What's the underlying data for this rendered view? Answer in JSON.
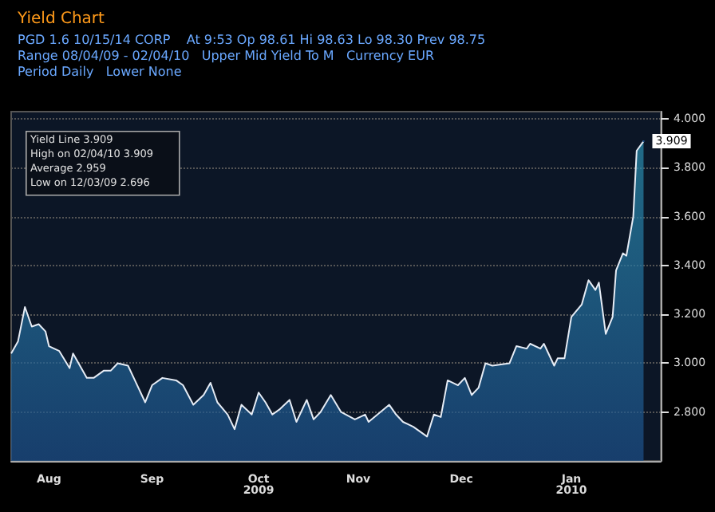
{
  "chart_data": {
    "type": "area",
    "title": "Yield Chart",
    "subtitle": "PGD 1.6 10/15/14 CORP    At 9:53 Op 98.61 Hi 98.63 Lo 98.30 Prev 98.75\nRange 08/04/09 - 02/04/10   Upper Mid Yield To M   Currency EUR\nPeriod Daily   Lower None",
    "x": [
      "2009-08-04",
      "2009-08-06",
      "2009-08-08",
      "2009-08-10",
      "2009-08-12",
      "2009-08-14",
      "2009-08-15",
      "2009-08-18",
      "2009-08-21",
      "2009-08-22",
      "2009-08-26",
      "2009-08-28",
      "2009-08-31",
      "2009-09-02",
      "2009-09-04",
      "2009-09-07",
      "2009-09-09",
      "2009-09-12",
      "2009-09-14",
      "2009-09-17",
      "2009-09-21",
      "2009-09-23",
      "2009-09-26",
      "2009-09-29",
      "2009-10-01",
      "2009-10-03",
      "2009-10-06",
      "2009-10-08",
      "2009-10-10",
      "2009-10-13",
      "2009-10-15",
      "2009-10-17",
      "2009-10-19",
      "2009-10-21",
      "2009-10-24",
      "2009-10-26",
      "2009-10-29",
      "2009-10-31",
      "2009-11-02",
      "2009-11-05",
      "2009-11-08",
      "2009-11-12",
      "2009-11-15",
      "2009-11-16",
      "2009-11-22",
      "2009-11-24",
      "2009-11-26",
      "2009-11-29",
      "2009-12-03",
      "2009-12-05",
      "2009-12-07",
      "2009-12-09",
      "2009-12-12",
      "2009-12-14",
      "2009-12-16",
      "2009-12-18",
      "2009-12-20",
      "2009-12-22",
      "2009-12-27",
      "2009-12-29",
      "2010-01-01",
      "2010-01-02",
      "2010-01-05",
      "2010-01-06",
      "2010-01-09",
      "2010-01-10",
      "2010-01-12",
      "2010-01-14",
      "2010-01-17",
      "2010-01-19",
      "2010-01-21",
      "2010-01-22",
      "2010-01-24",
      "2010-01-26",
      "2010-01-27",
      "2010-01-29",
      "2010-01-30",
      "2010-02-01",
      "2010-02-02",
      "2010-02-04"
    ],
    "series": [
      {
        "color": "#1c4f8a",
        "values": [
          3.04,
          3.09,
          3.23,
          3.15,
          3.16,
          3.13,
          3.07,
          3.05,
          2.98,
          3.04,
          2.94,
          2.94,
          2.97,
          2.97,
          3.0,
          2.99,
          2.93,
          2.84,
          2.91,
          2.94,
          2.93,
          2.91,
          2.83,
          2.87,
          2.92,
          2.84,
          2.79,
          2.73,
          2.83,
          2.79,
          2.88,
          2.84,
          2.79,
          2.81,
          2.85,
          2.76,
          2.85,
          2.77,
          2.8,
          2.87,
          2.8,
          2.77,
          2.79,
          2.76,
          2.83,
          2.79,
          2.76,
          2.74,
          2.7,
          2.79,
          2.78,
          2.93,
          2.91,
          2.94,
          2.87,
          2.9,
          3.0,
          2.99,
          3.0,
          3.07,
          3.06,
          3.08,
          3.06,
          3.08,
          2.99,
          3.02,
          3.02,
          3.19,
          3.24,
          3.34,
          3.3,
          3.33,
          3.12,
          3.19,
          3.38,
          3.45,
          3.44,
          3.6,
          3.87,
          3.909
        ]
      }
    ],
    "xlim": [
      "2009-08-04",
      "2010-02-09"
    ],
    "xticks": [
      {
        "value": "2009-08-15",
        "label": "Aug"
      },
      {
        "value": "2009-09-14",
        "label": "Sep"
      },
      {
        "value": "2009-10-15",
        "label": "Oct\n2009"
      },
      {
        "value": "2009-11-13",
        "label": "Nov"
      },
      {
        "value": "2009-12-13",
        "label": "Dec"
      },
      {
        "value": "2010-01-14",
        "label": "Jan\n2010"
      }
    ],
    "ylim": [
      2.6,
      4.03
    ],
    "yticks": [
      {
        "value": 2.8,
        "label": "2.800"
      },
      {
        "value": 3.0,
        "label": "3.000"
      },
      {
        "value": 3.2,
        "label": "3.200"
      },
      {
        "value": 3.4,
        "label": "3.400"
      },
      {
        "value": 3.6,
        "label": "3.600"
      },
      {
        "value": 3.8,
        "label": "3.800"
      },
      {
        "value": 4.0,
        "label": "4.000"
      }
    ],
    "grid": "y",
    "annotations": [
      "Yield Line 3.909",
      "High on 02/04/10 3.909",
      "Average 2.959",
      "Low on 12/03/09 2.696",
      {
        "text": "3.909",
        "x": "2010-02-04",
        "y": 3.909
      }
    ]
  }
}
